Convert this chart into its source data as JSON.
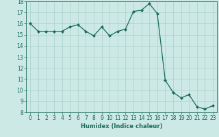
{
  "title": "",
  "xlabel": "Humidex (Indice chaleur)",
  "x": [
    0,
    1,
    2,
    3,
    4,
    5,
    6,
    7,
    8,
    9,
    10,
    11,
    12,
    13,
    14,
    15,
    16,
    17,
    18,
    19,
    20,
    21,
    22,
    23
  ],
  "y": [
    16.0,
    15.3,
    15.3,
    15.3,
    15.3,
    15.7,
    15.9,
    15.3,
    14.9,
    15.7,
    14.9,
    15.3,
    15.5,
    17.1,
    17.2,
    17.8,
    16.9,
    10.9,
    9.8,
    9.3,
    9.6,
    8.5,
    8.3,
    8.6
  ],
  "ylim": [
    8,
    18
  ],
  "xlim": [
    -0.5,
    23.5
  ],
  "yticks": [
    8,
    9,
    10,
    11,
    12,
    13,
    14,
    15,
    16,
    17,
    18
  ],
  "xticks": [
    0,
    1,
    2,
    3,
    4,
    5,
    6,
    7,
    8,
    9,
    10,
    11,
    12,
    13,
    14,
    15,
    16,
    17,
    18,
    19,
    20,
    21,
    22,
    23
  ],
  "line_color": "#1a6b5a",
  "marker": "D",
  "marker_size": 2.0,
  "linewidth": 0.9,
  "bg_color": "#cce9e5",
  "grid_color": "#afd4cf",
  "label_fontsize": 6.0,
  "tick_fontsize": 5.5
}
